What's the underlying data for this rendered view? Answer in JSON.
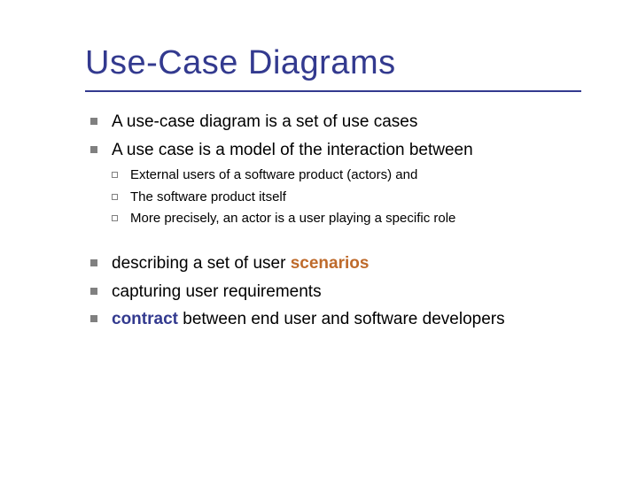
{
  "slide": {
    "title": "Use-Case Diagrams",
    "title_color": "#333a8f",
    "underline_color": "#333a8f",
    "bullet_l1_color": "#808080",
    "bullet_l2_border_color": "#808080",
    "highlight_scenarios_color": "#be6a2b",
    "highlight_contract_color": "#333a8f",
    "body_text_color": "#000000",
    "title_fontsize": 38,
    "text_l1_fontsize": 19,
    "text_l2_fontsize": 15,
    "items": [
      {
        "level": 1,
        "text": "A use-case diagram is a set of use cases"
      },
      {
        "level": 1,
        "text": "A use case is a model of the interaction between"
      },
      {
        "level": 2,
        "text": "External users of a software product (actors) and"
      },
      {
        "level": 2,
        "text": "The software product itself"
      },
      {
        "level": 2,
        "text": "More precisely, an actor is a user playing a specific role"
      },
      {
        "level": 0,
        "spacer": true
      },
      {
        "level": 1,
        "text_before": "describing a set of user ",
        "highlight": "scenarios",
        "highlight_color": "#be6a2b",
        "text_after": ""
      },
      {
        "level": 1,
        "text": "capturing user requirements"
      },
      {
        "level": 1,
        "text_before": "",
        "highlight": "contract",
        "highlight_color": "#333a8f",
        "text_after": " between end user and software developers"
      }
    ]
  }
}
